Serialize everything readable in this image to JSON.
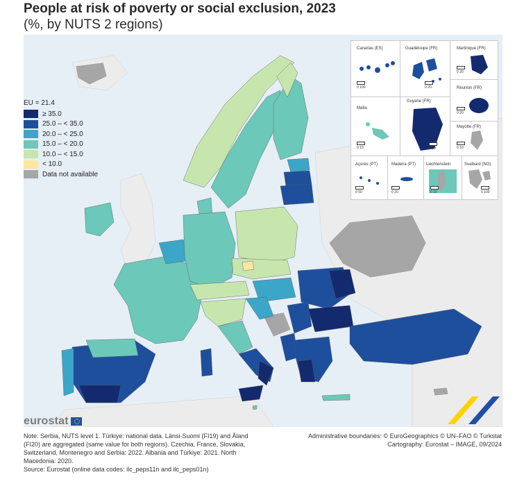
{
  "title": "People at risk of poverty or social exclusion, 2023",
  "subtitle": "(%, by NUTS 2 regions)",
  "legend": {
    "eu_value": "EU = 21.4",
    "items": [
      {
        "label": "≥ 35.0",
        "color": "#142a6e"
      },
      {
        "label": "25.0 – < 35.0",
        "color": "#1e4f9c"
      },
      {
        "label": "20.0 – < 25.0",
        "color": "#3ba6c8"
      },
      {
        "label": "15.0 – < 20.0",
        "color": "#6cc8b8"
      },
      {
        "label": "10.0 – < 15.0",
        "color": "#c6e6ae"
      },
      {
        "label": "< 10.0",
        "color": "#fbe7a1"
      },
      {
        "label": "Data not available",
        "color": "#a6a6a6"
      }
    ]
  },
  "insets": {
    "canarias": "Canarias (ES)",
    "guadeloupe": "Guadeloupe (FR)",
    "martinique": "Martinique (FR)",
    "reunion": "Réunion (FR)",
    "malta": "Malta",
    "guyane": "Guyane (FR)",
    "mayotte": "Mayotte (FR)",
    "acores": "Açores (PT)",
    "madeira": "Madeira (PT)",
    "liechtenstein": "Liechtenstein",
    "svalbard": "Svalbard (NO)"
  },
  "scales": {
    "canarias": "0   100",
    "guadeloupe": "0   20",
    "martinique": "0   20",
    "reunion": "0   20",
    "malta": "0   10",
    "guyane": "0   50",
    "mayotte": "0   10",
    "acores": "0   50",
    "madeira": "0   20",
    "liechtenstein": "0   10",
    "svalbard": "0 100"
  },
  "footer": {
    "brand": "eurostat",
    "note_lines": [
      "Note: Serbia, NUTS level 1. Türkiye: national data. Länsi-Suomi (FI19) and Åland",
      "(FI20) are aggregated (same value for both regions). Czechia, France, Slovakia,",
      "Switzerland, Montenegro and Serbia: 2022. Albania and Türkiye: 2021. North",
      "Macedonia: 2020.",
      "Source: Eurostat (online data codes: ilc_peps11n and ilc_peps01n)"
    ],
    "credit_lines": [
      "Administrative boundaries: © EuroGeographics © UN–FAO © Turkstat",
      "Cartography: Eurostat – IMAGE, 09/2024"
    ]
  },
  "colors": {
    "sea": "#e6eef6",
    "non_eu_land": "#ececec",
    "border": "#555555"
  }
}
